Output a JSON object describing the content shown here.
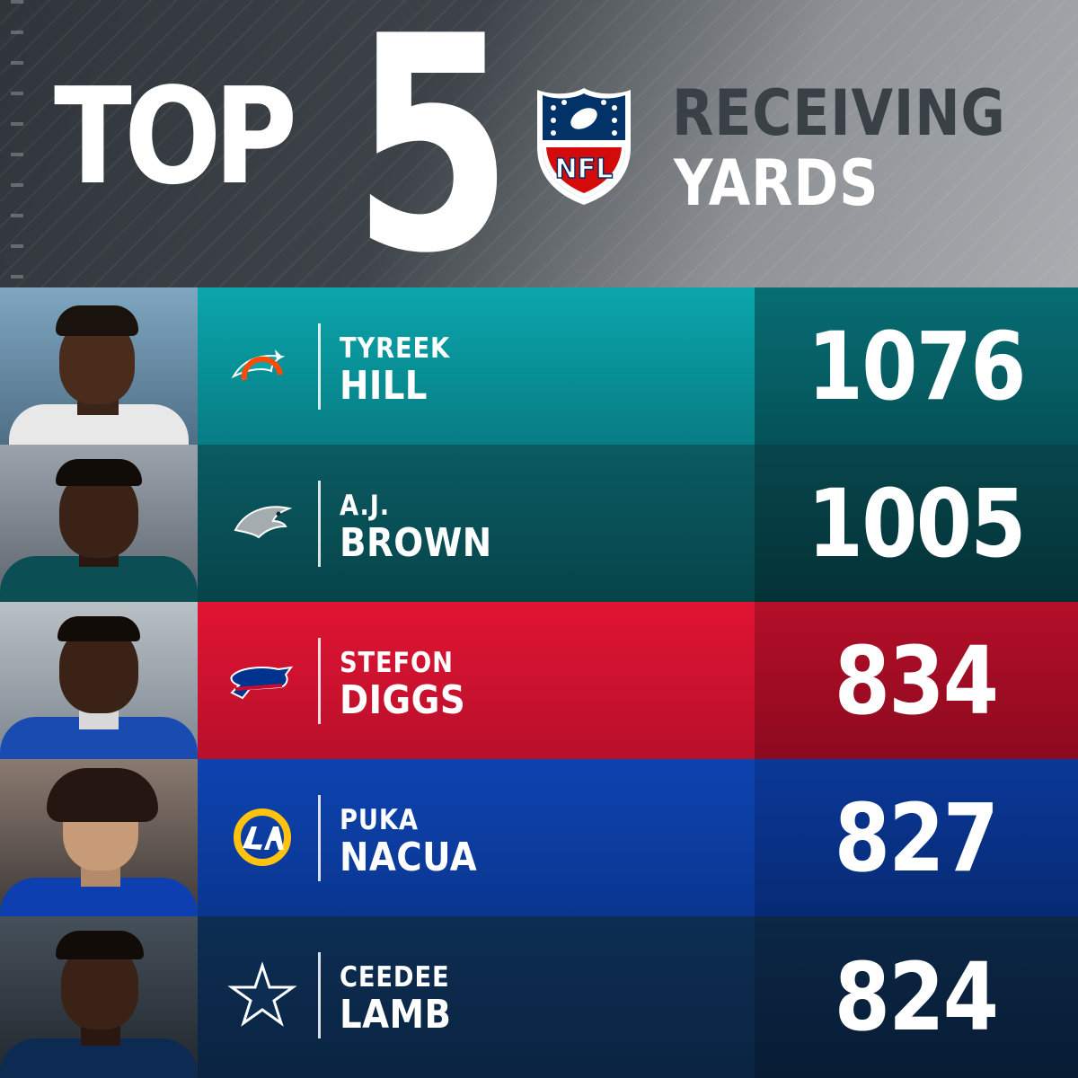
{
  "header": {
    "top_label": "TOP",
    "number_label": "5",
    "league_logo_text": "NFL",
    "stat_line1": "RECEIVING",
    "stat_line2": "YARDS"
  },
  "rows": [
    {
      "first": "TYREEK",
      "last": "HILL",
      "value": "1076",
      "team_icon": "dolphins-logo-icon",
      "team_colors": [
        "#0aa6ac",
        "#fc4c02"
      ]
    },
    {
      "first": "A.J.",
      "last": "BROWN",
      "value": "1005",
      "team_icon": "eagles-logo-icon",
      "team_colors": [
        "#0b5b62",
        "#a5acaf"
      ]
    },
    {
      "first": "STEFON",
      "last": "DIGGS",
      "value": "834",
      "team_icon": "bills-logo-icon",
      "team_colors": [
        "#e01433",
        "#00338d"
      ]
    },
    {
      "first": "PUKA",
      "last": "NACUA",
      "value": "827",
      "team_icon": "rams-logo-icon",
      "team_colors": [
        "#0d43b0",
        "#ffc20e"
      ]
    },
    {
      "first": "CEEDEE",
      "last": "LAMB",
      "value": "824",
      "team_icon": "cowboys-star-icon",
      "team_colors": [
        "#0d2d52",
        "#869397"
      ]
    }
  ]
}
